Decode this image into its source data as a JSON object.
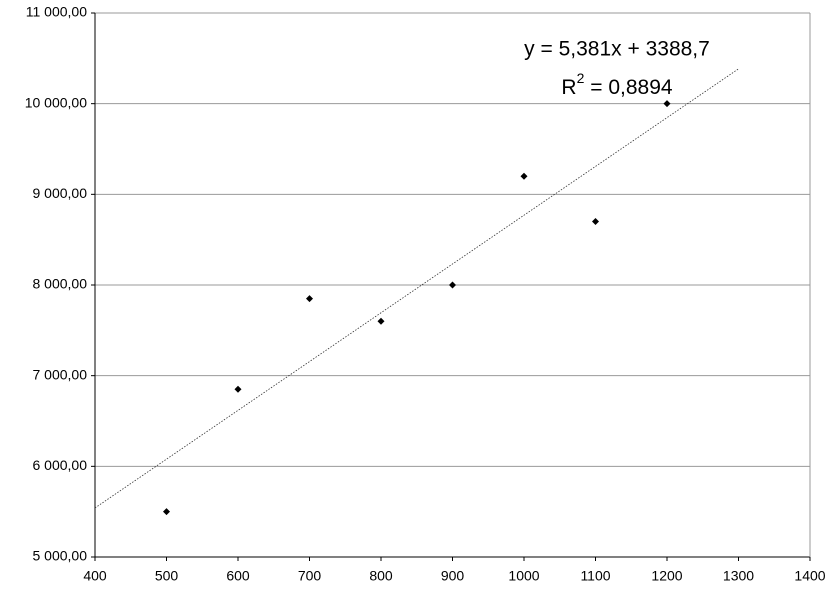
{
  "chart_data": {
    "type": "scatter",
    "x": [
      500,
      600,
      700,
      800,
      900,
      1000,
      1100,
      1200
    ],
    "values": [
      5500,
      6850,
      7850,
      7600,
      8000,
      9200,
      8700,
      10000
    ],
    "color": "#000000",
    "xlim": [
      400,
      1400
    ],
    "xticks": [
      400,
      500,
      600,
      700,
      800,
      900,
      1000,
      1100,
      1200,
      1300,
      1400
    ],
    "ylim": [
      5000,
      11000
    ],
    "yticks": [
      {
        "value": 5000,
        "label": "5 000,00"
      },
      {
        "value": 6000,
        "label": "6 000,00"
      },
      {
        "value": 7000,
        "label": "7 000,00"
      },
      {
        "value": 8000,
        "label": "8 000,00"
      },
      {
        "value": 9000,
        "label": "9 000,00"
      },
      {
        "value": 10000,
        "label": "10 000,00"
      },
      {
        "value": 11000,
        "label": "11 000,00"
      }
    ],
    "grid": true,
    "trendline": {
      "slope": 5.381,
      "intercept": 3388.7,
      "x_range": [
        400,
        1300
      ],
      "equation": "y = 5,381x + 3388,7",
      "r_squared": {
        "prefix": "R",
        "sup": "2",
        "rest": " = 0,8894"
      }
    }
  }
}
